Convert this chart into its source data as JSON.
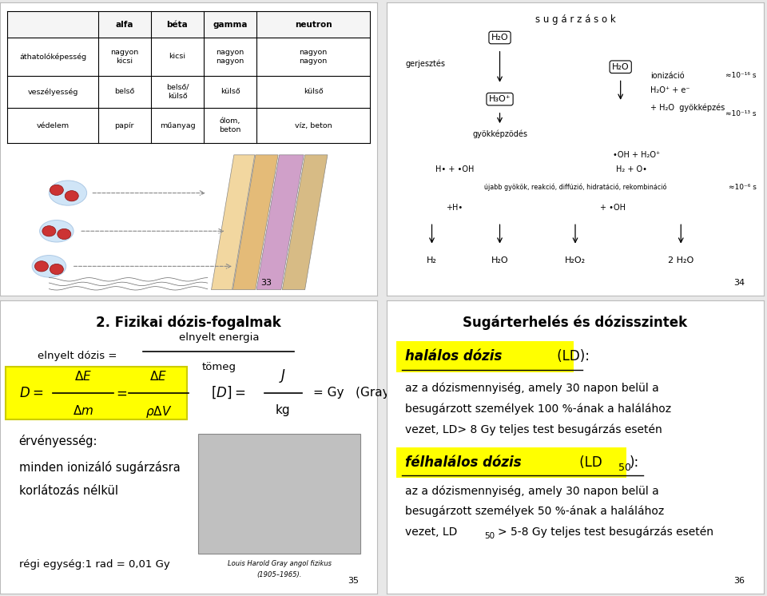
{
  "bg_color": "#e8e8e8",
  "slide_bg": "#ffffff",
  "yellow": "#ffff00",
  "black": "#000000",
  "slide_pages": [
    "33",
    "34",
    "35",
    "36"
  ],
  "slide1_table_headers": [
    "",
    "alfa",
    "béta",
    "gamma",
    "neutron"
  ],
  "slide1_table_rows": [
    [
      "áthatolóképesség",
      "nagyon\nkicsi",
      "kicsi",
      "nagyon\nnagyon",
      "nagyon\nnagyon"
    ],
    [
      "veszélyesség",
      "belső",
      "belső/\nkülső",
      "külső",
      "külső"
    ],
    [
      "védelem",
      "papír",
      "műanyag",
      "ólom,\nbeton",
      "víz, beton"
    ]
  ],
  "slide2_title": "s u g á r z á s o k",
  "slide3_title": "2. Fizikai dózis-fogalmak",
  "slide3_formula1_left": "elnyelt dózis =",
  "slide3_formula1_num": "elnyelt energia",
  "slide3_formula1_den": "tömeg",
  "slide3_validity": "érvényesség:",
  "slide3_validity1": "minden ionizáló sugárzásra",
  "slide3_validity2": "korlátozás nélkül",
  "slide3_old": "régi egység:1 rad = 0,01 Gy",
  "slide3_caption1": "Louis Harold Gray angol fizikus",
  "slide3_caption2": "(1905–1965).",
  "slide4_title": "Sugárterhelés és dózisszintek",
  "slide4_hl1": "halálos dózis",
  "slide4_hl1b": " (LD):",
  "slide4_t1a": "az a dózismennyiség, amely 30 napon belül a",
  "slide4_t1b": "besugárzott személyek 100 %-ának a halálához",
  "slide4_t1c": "vezet, LD> 8 Gy teljes test besugárzás esetén",
  "slide4_hl2": "félhalálos dózis",
  "slide4_hl2b": " (LD",
  "slide4_hl2c": "50",
  "slide4_hl2d": "):",
  "slide4_t2a": "az a dózismennyiség, amely 30 napon belül a",
  "slide4_t2b": "besugárzott személyek 50 %-ának a halálához",
  "slide4_t2c": "vezet, LD",
  "slide4_t2d": "50",
  "slide4_t2e": "> 5-8 Gy teljes test besugárzás esetén"
}
